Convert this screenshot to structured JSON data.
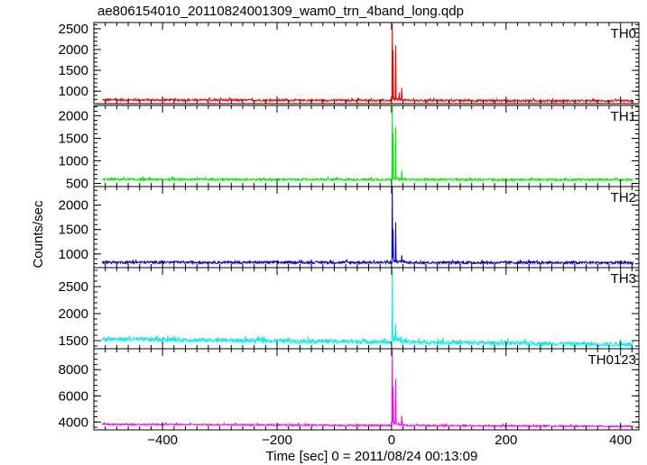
{
  "chart_data": {
    "type": "line",
    "title": "ae806154010_20110824001309_wam0_trn_4band_long.qdp",
    "xlabel": "Time [sec] 0 = 2011/08/24 00:13:09",
    "ylabel": "Counts/sec",
    "xlim": [
      -520,
      432
    ],
    "x_ticks": [
      -400,
      -200,
      0,
      200,
      400
    ],
    "x_tick_labels": [
      "−400",
      "−200",
      "0",
      "200",
      "400"
    ],
    "panels": [
      {
        "name": "TH0",
        "color": "#ff0000",
        "ylim": [
          700,
          2650
        ],
        "y_ticks": [
          1000,
          1500,
          2000,
          2500
        ],
        "baseline": 790,
        "noise": 25,
        "trend": -25,
        "peaks": [
          {
            "x": 1,
            "y": 2620
          },
          {
            "x": 7,
            "y": 2080
          },
          {
            "x": 3,
            "y": 1950
          },
          {
            "x": 18,
            "y": 1080
          },
          {
            "x": 13,
            "y": 960
          }
        ]
      },
      {
        "name": "TH1",
        "color": "#00ee00",
        "ylim": [
          430,
          2230
        ],
        "y_ticks": [
          500,
          1000,
          1500,
          2000
        ],
        "baseline": 590,
        "noise": 25,
        "trend": -10,
        "peaks": [
          {
            "x": 1,
            "y": 2200
          },
          {
            "x": 7,
            "y": 1730
          },
          {
            "x": 3,
            "y": 1600
          },
          {
            "x": 18,
            "y": 780
          }
        ]
      },
      {
        "name": "TH2",
        "color": "#0000cc",
        "ylim": [
          720,
          2380
        ],
        "y_ticks": [
          1000,
          1500,
          2000
        ],
        "baseline": 830,
        "noise": 25,
        "trend": -10,
        "peaks": [
          {
            "x": 1,
            "y": 2360
          },
          {
            "x": 7,
            "y": 1600
          },
          {
            "x": 3,
            "y": 1450
          },
          {
            "x": 18,
            "y": 960
          }
        ]
      },
      {
        "name": "TH3",
        "color": "#00eeee",
        "ylim": [
          1350,
          2850
        ],
        "y_ticks": [
          1500,
          2000,
          2500
        ],
        "baseline": 1530,
        "noise": 40,
        "trend": -100,
        "peaks": [
          {
            "x": 1,
            "y": 2830
          },
          {
            "x": 7,
            "y": 1750
          }
        ]
      },
      {
        "name": "TH0123",
        "color": "#ff00ff",
        "ylim": [
          3400,
          9600
        ],
        "y_ticks": [
          4000,
          6000,
          8000
        ],
        "baseline": 3820,
        "noise": 60,
        "trend": -150,
        "peaks": [
          {
            "x": 1,
            "y": 9500
          },
          {
            "x": 7,
            "y": 7200
          },
          {
            "x": 3,
            "y": 6600
          },
          {
            "x": 18,
            "y": 4400
          }
        ]
      }
    ]
  }
}
